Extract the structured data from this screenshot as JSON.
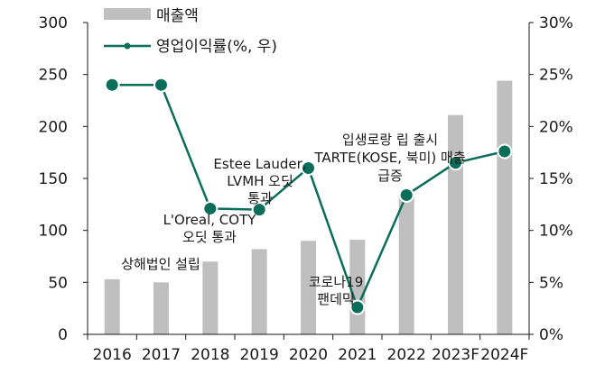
{
  "chart_data": {
    "type": "bar+line",
    "categories": [
      "2016",
      "2017",
      "2018",
      "2019",
      "2020",
      "2021",
      "2022",
      "2023F",
      "2024F"
    ],
    "series": [
      {
        "name": "매출액",
        "type": "bar",
        "axis": "left",
        "color": "#bfbfbf",
        "values": [
          53,
          50,
          70,
          82,
          90,
          91,
          135,
          211,
          244
        ]
      },
      {
        "name": "영업이익률(%, 우)",
        "type": "line",
        "axis": "right",
        "color": "#0b6e5a",
        "values": [
          24.0,
          24.0,
          12.1,
          12.0,
          16.0,
          2.6,
          13.4,
          16.5,
          17.6
        ]
      }
    ],
    "y_left": {
      "lim": [
        0,
        300
      ],
      "ticks": [
        "0",
        "50",
        "100",
        "150",
        "200",
        "250",
        "300"
      ]
    },
    "y_right": {
      "lim": [
        0,
        30
      ],
      "ticks": [
        "0%",
        "5%",
        "10%",
        "15%",
        "20%",
        "25%",
        "30%"
      ]
    },
    "grid": false,
    "legend_position": "top-left",
    "annotations": [
      {
        "lines": [
          "상해법인 설립"
        ],
        "category": "2017"
      },
      {
        "lines": [
          "L'Oreal, COTY",
          "오딧 통과"
        ],
        "category": "2018"
      },
      {
        "lines": [
          "Estee Lauder,",
          "LVMH 오딧",
          "통과"
        ],
        "category": "2019"
      },
      {
        "lines": [
          "입생로랑 립 출시",
          "TARTE(KOSE, 북미) 매출",
          "급증"
        ],
        "category": "2022"
      },
      {
        "lines": [
          "코로나19",
          "팬데믹"
        ],
        "category": "2021"
      }
    ]
  }
}
